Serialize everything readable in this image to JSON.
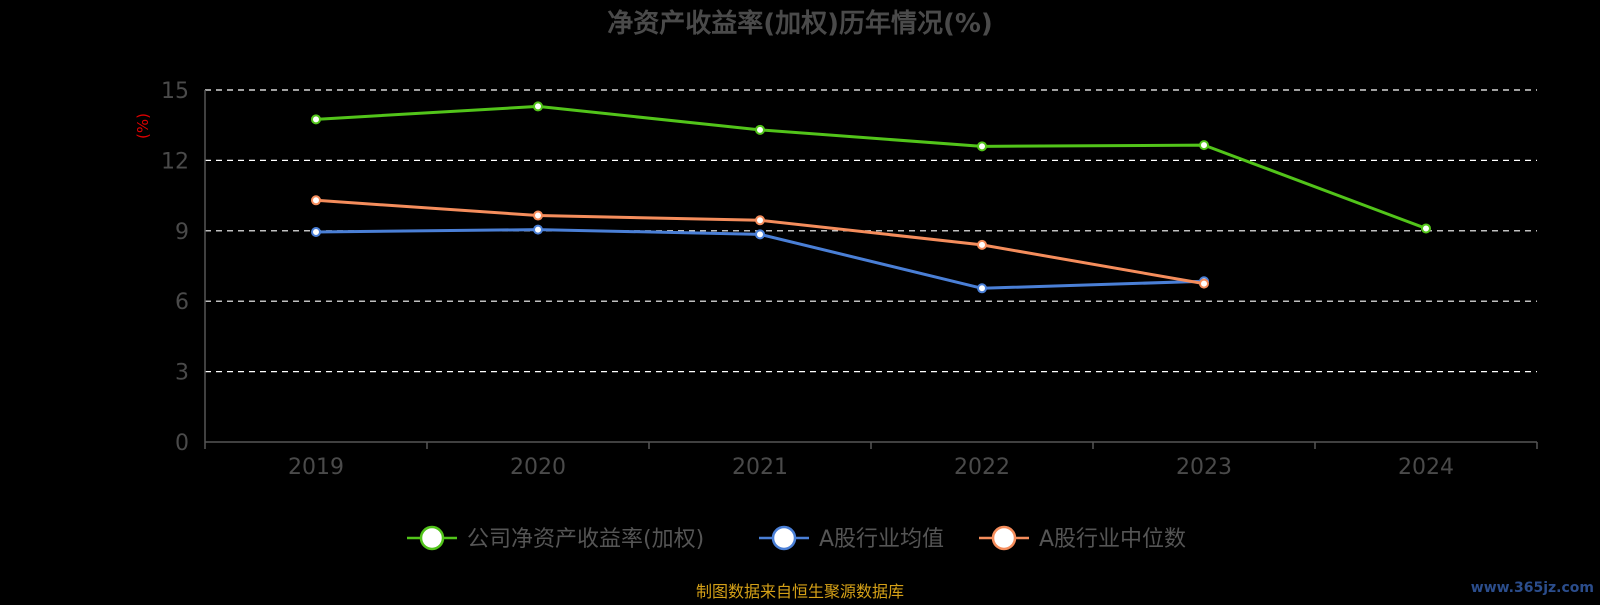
{
  "chart_data": {
    "type": "line",
    "title": "净资产收益率(加权)历年情况(%)",
    "ylabel": "(%)",
    "xlabel": "",
    "categories": [
      "2019",
      "2020",
      "2021",
      "2022",
      "2023",
      "2024"
    ],
    "ylim": [
      0,
      15
    ],
    "yticks": [
      0,
      3,
      6,
      9,
      12,
      15
    ],
    "grid": true,
    "legend_position": "bottom-center",
    "series": [
      {
        "name": "公司净资产收益率(加权)",
        "color": "#52c41a",
        "values": [
          13.75,
          14.3,
          13.3,
          12.6,
          12.65,
          9.1
        ]
      },
      {
        "name": "A股行业均值",
        "color": "#4a7fd6",
        "values": [
          8.95,
          9.05,
          8.85,
          6.55,
          6.85,
          null
        ]
      },
      {
        "name": "A股行业中位数",
        "color": "#f58d5c",
        "values": [
          10.3,
          9.65,
          9.45,
          8.4,
          6.75,
          null
        ]
      }
    ]
  },
  "colors": {
    "title": "#4a4a4a",
    "axis": "#555555",
    "tick_label": "#4a4a4a",
    "grid": "#ffffff",
    "ylabel": "#e00000",
    "legend_text": "#555555",
    "source": "#d4a017",
    "watermark": "#2b4d8c"
  },
  "footer": {
    "source": "制图数据来自恒生聚源数据库",
    "watermark": "www.365jz.com"
  }
}
